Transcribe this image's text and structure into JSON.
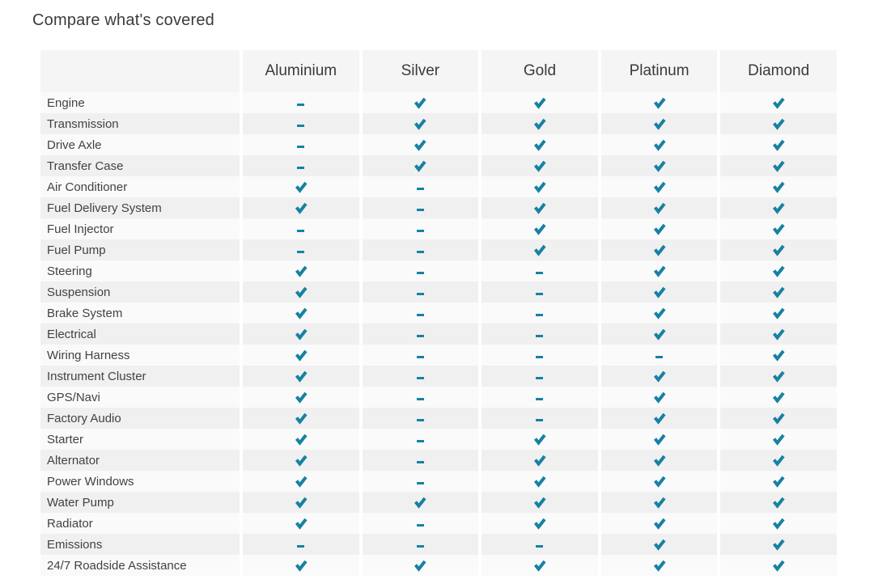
{
  "title": "Compare what's covered",
  "accent_color": "#1681a3",
  "colors": {
    "header_bg": "#f5f5f5",
    "row_odd_bg": "#fafafa",
    "row_even_bg": "#f0f0f0",
    "header_text": "#3a3a3a",
    "label_text": "#424242",
    "title_text": "#3b3b3b"
  },
  "icons": {
    "covered": "check-icon",
    "not_covered": "dash-icon"
  },
  "table": {
    "plans": [
      "Aluminium",
      "Silver",
      "Gold",
      "Platinum",
      "Diamond"
    ],
    "rows": [
      {
        "feature": "Engine",
        "covered": [
          false,
          true,
          true,
          true,
          true
        ]
      },
      {
        "feature": "Transmission",
        "covered": [
          false,
          true,
          true,
          true,
          true
        ]
      },
      {
        "feature": "Drive Axle",
        "covered": [
          false,
          true,
          true,
          true,
          true
        ]
      },
      {
        "feature": "Transfer Case",
        "covered": [
          false,
          true,
          true,
          true,
          true
        ]
      },
      {
        "feature": "Air Conditioner",
        "covered": [
          true,
          false,
          true,
          true,
          true
        ]
      },
      {
        "feature": "Fuel Delivery System",
        "covered": [
          true,
          false,
          true,
          true,
          true
        ]
      },
      {
        "feature": "Fuel Injector",
        "covered": [
          false,
          false,
          true,
          true,
          true
        ]
      },
      {
        "feature": "Fuel Pump",
        "covered": [
          false,
          false,
          true,
          true,
          true
        ]
      },
      {
        "feature": "Steering",
        "covered": [
          true,
          false,
          false,
          true,
          true
        ]
      },
      {
        "feature": "Suspension",
        "covered": [
          true,
          false,
          false,
          true,
          true
        ]
      },
      {
        "feature": "Brake System",
        "covered": [
          true,
          false,
          false,
          true,
          true
        ]
      },
      {
        "feature": "Electrical",
        "covered": [
          true,
          false,
          false,
          true,
          true
        ]
      },
      {
        "feature": "Wiring Harness",
        "covered": [
          true,
          false,
          false,
          false,
          true
        ]
      },
      {
        "feature": "Instrument Cluster",
        "covered": [
          true,
          false,
          false,
          true,
          true
        ]
      },
      {
        "feature": "GPS/Navi",
        "covered": [
          true,
          false,
          false,
          true,
          true
        ]
      },
      {
        "feature": "Factory Audio",
        "covered": [
          true,
          false,
          false,
          true,
          true
        ]
      },
      {
        "feature": "Starter",
        "covered": [
          true,
          false,
          true,
          true,
          true
        ]
      },
      {
        "feature": "Alternator",
        "covered": [
          true,
          false,
          true,
          true,
          true
        ]
      },
      {
        "feature": "Power Windows",
        "covered": [
          true,
          false,
          true,
          true,
          true
        ]
      },
      {
        "feature": "Water Pump",
        "covered": [
          true,
          true,
          true,
          true,
          true
        ]
      },
      {
        "feature": "Radiator",
        "covered": [
          true,
          false,
          true,
          true,
          true
        ]
      },
      {
        "feature": "Emissions",
        "covered": [
          false,
          false,
          false,
          true,
          true
        ]
      },
      {
        "feature": "24/7 Roadside Assistance",
        "covered": [
          true,
          true,
          true,
          true,
          true
        ]
      }
    ]
  }
}
